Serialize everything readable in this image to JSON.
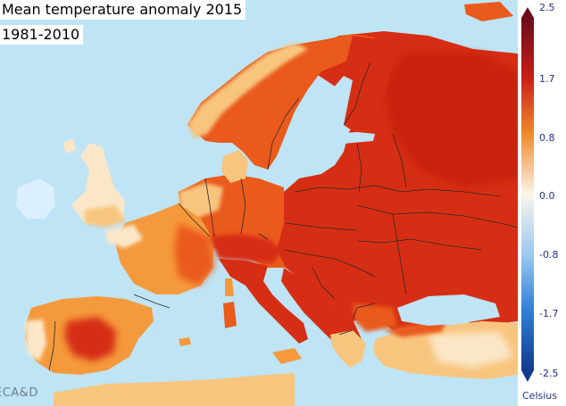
{
  "title": {
    "line1": "Mean temperature anomaly 2015",
    "line2": "1981-2010"
  },
  "logo": {
    "text": "ECA&D"
  },
  "legend": {
    "ticks": [
      "2.5",
      "1.7",
      "0.8",
      "0.0",
      "-0.8",
      "-1.7",
      "-2.5"
    ],
    "units": "Celsius"
  },
  "colors": {
    "sea": "#bfe4f5",
    "strong_warm": "#d92e14",
    "warm": "#ea5a1c",
    "moderate": "#f59a3c",
    "mild": "#f8c57e",
    "neutral": "#fbe7c8",
    "cool": "#dcefff",
    "border": "#2a2a2a"
  }
}
